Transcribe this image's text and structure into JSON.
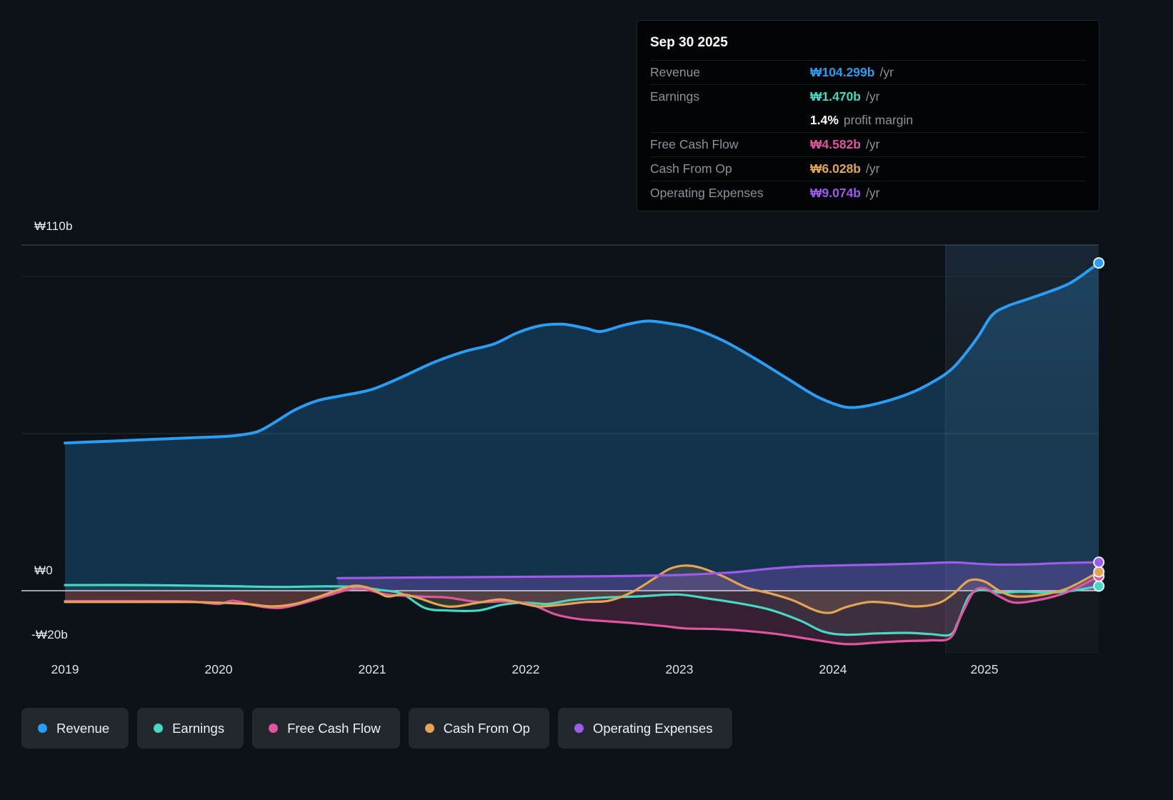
{
  "tooltip": {
    "title": "Sep 30 2025",
    "rows": [
      {
        "label": "Revenue",
        "value": "₩104.299b",
        "suffix": "/yr",
        "color": "#2b9df4"
      },
      {
        "label": "Earnings",
        "value": "₩1.470b",
        "suffix": "/yr",
        "color": "#47d7c3"
      },
      {
        "label": "",
        "value": "1.4%",
        "suffix": "profit margin",
        "color": "#ffffff"
      },
      {
        "label": "Free Cash Flow",
        "value": "₩4.582b",
        "suffix": "/yr",
        "color": "#e0559f"
      },
      {
        "label": "Cash From Op",
        "value": "₩6.028b",
        "suffix": "/yr",
        "color": "#e3a455"
      },
      {
        "label": "Operating Expenses",
        "value": "₩9.074b",
        "suffix": "/yr",
        "color": "#9d5ce8"
      }
    ]
  },
  "axis": {
    "y_labels": [
      {
        "text": "₩110b",
        "value": 110
      },
      {
        "text": "₩0",
        "value": 0
      },
      {
        "text": "-₩20b",
        "value": -20
      }
    ],
    "x_labels": [
      "2019",
      "2020",
      "2021",
      "2022",
      "2023",
      "2024",
      "2025"
    ]
  },
  "legend": [
    {
      "label": "Revenue",
      "color": "#2b9df4"
    },
    {
      "label": "Earnings",
      "color": "#47d7c3"
    },
    {
      "label": "Free Cash Flow",
      "color": "#e0559f"
    },
    {
      "label": "Cash From Op",
      "color": "#e3a455"
    },
    {
      "label": "Operating Expenses",
      "color": "#9d5ce8"
    }
  ],
  "chart_data": {
    "type": "area",
    "title": "Company financial history and analyst view to Sep 30 2025",
    "y_unit": "KRW billions",
    "ylim": [
      -20,
      110
    ],
    "x_range": [
      2019,
      2025.75
    ],
    "x_ticks": [
      "2019",
      "2020",
      "2021",
      "2022",
      "2023",
      "2024",
      "2025"
    ],
    "y_ticks": [
      "₩110b",
      "₩0",
      "-₩20b"
    ],
    "grid": true,
    "legend_position": "bottom",
    "highlight_from_x": 2024.75,
    "series": [
      {
        "name": "Revenue",
        "color": "#2b9df4",
        "points": [
          [
            2019.0,
            47
          ],
          [
            2019.3,
            47.6
          ],
          [
            2019.6,
            48.2
          ],
          [
            2019.9,
            48.8
          ],
          [
            2020.1,
            49.3
          ],
          [
            2020.25,
            50.5
          ],
          [
            2020.35,
            53
          ],
          [
            2020.5,
            57.5
          ],
          [
            2020.65,
            60.5
          ],
          [
            2020.8,
            62
          ],
          [
            2021.0,
            64
          ],
          [
            2021.2,
            68
          ],
          [
            2021.4,
            72.5
          ],
          [
            2021.6,
            76
          ],
          [
            2021.8,
            78.5
          ],
          [
            2021.95,
            82
          ],
          [
            2022.1,
            84.3
          ],
          [
            2022.25,
            84.8
          ],
          [
            2022.4,
            83.5
          ],
          [
            2022.5,
            82.5
          ],
          [
            2022.65,
            84.5
          ],
          [
            2022.8,
            85.8
          ],
          [
            2022.95,
            85
          ],
          [
            2023.1,
            83.5
          ],
          [
            2023.3,
            79.5
          ],
          [
            2023.5,
            74
          ],
          [
            2023.7,
            68
          ],
          [
            2023.9,
            62
          ],
          [
            2024.05,
            59
          ],
          [
            2024.15,
            58.3
          ],
          [
            2024.3,
            59.5
          ],
          [
            2024.5,
            62.5
          ],
          [
            2024.65,
            66
          ],
          [
            2024.8,
            71
          ],
          [
            2024.95,
            80
          ],
          [
            2025.05,
            87.5
          ],
          [
            2025.15,
            90.5
          ],
          [
            2025.3,
            93
          ],
          [
            2025.5,
            96.5
          ],
          [
            2025.6,
            99
          ],
          [
            2025.75,
            104.299
          ]
        ]
      },
      {
        "name": "Earnings",
        "color": "#47d7c3",
        "points": [
          [
            2019.0,
            1.8
          ],
          [
            2019.5,
            1.8
          ],
          [
            2020.0,
            1.5
          ],
          [
            2020.4,
            1.2
          ],
          [
            2020.7,
            1.4
          ],
          [
            2020.9,
            1.2
          ],
          [
            2021.05,
            0.3
          ],
          [
            2021.2,
            -1
          ],
          [
            2021.35,
            -5.5
          ],
          [
            2021.5,
            -6.3
          ],
          [
            2021.7,
            -6.3
          ],
          [
            2021.85,
            -4.5
          ],
          [
            2022.0,
            -3.8
          ],
          [
            2022.15,
            -4.2
          ],
          [
            2022.3,
            -3
          ],
          [
            2022.5,
            -2.2
          ],
          [
            2022.75,
            -1.8
          ],
          [
            2023.0,
            -1.2
          ],
          [
            2023.2,
            -2.5
          ],
          [
            2023.4,
            -4
          ],
          [
            2023.6,
            -6
          ],
          [
            2023.8,
            -9.5
          ],
          [
            2023.95,
            -13
          ],
          [
            2024.1,
            -14
          ],
          [
            2024.3,
            -13.6
          ],
          [
            2024.5,
            -13.4
          ],
          [
            2024.65,
            -13.8
          ],
          [
            2024.78,
            -14
          ],
          [
            2024.83,
            -10
          ],
          [
            2024.9,
            -2
          ],
          [
            2024.98,
            0.3
          ],
          [
            2025.1,
            -0.6
          ],
          [
            2025.25,
            -0.3
          ],
          [
            2025.4,
            -0.6
          ],
          [
            2025.55,
            -0.2
          ],
          [
            2025.75,
            1.47
          ]
        ]
      },
      {
        "name": "Free Cash Flow",
        "color": "#e0559f",
        "points": [
          [
            2019.0,
            -3.3
          ],
          [
            2019.4,
            -3.3
          ],
          [
            2019.8,
            -3.4
          ],
          [
            2020.0,
            -4.2
          ],
          [
            2020.1,
            -3.2
          ],
          [
            2020.25,
            -4.8
          ],
          [
            2020.4,
            -5.5
          ],
          [
            2020.55,
            -4
          ],
          [
            2020.7,
            -1.8
          ],
          [
            2020.85,
            0.3
          ],
          [
            2020.95,
            0.6
          ],
          [
            2021.1,
            -1.2
          ],
          [
            2021.3,
            -1.8
          ],
          [
            2021.5,
            -2.2
          ],
          [
            2021.7,
            -3.6
          ],
          [
            2021.9,
            -3.4
          ],
          [
            2022.05,
            -4.5
          ],
          [
            2022.2,
            -7.5
          ],
          [
            2022.35,
            -9
          ],
          [
            2022.5,
            -9.6
          ],
          [
            2022.7,
            -10.3
          ],
          [
            2022.9,
            -11.2
          ],
          [
            2023.05,
            -12
          ],
          [
            2023.25,
            -12.2
          ],
          [
            2023.45,
            -12.8
          ],
          [
            2023.65,
            -13.8
          ],
          [
            2023.85,
            -15.3
          ],
          [
            2024.05,
            -16.8
          ],
          [
            2024.15,
            -17
          ],
          [
            2024.3,
            -16.5
          ],
          [
            2024.5,
            -16
          ],
          [
            2024.65,
            -15.8
          ],
          [
            2024.78,
            -15
          ],
          [
            2024.85,
            -8
          ],
          [
            2024.93,
            -0.5
          ],
          [
            2025.0,
            0.8
          ],
          [
            2025.1,
            -1.8
          ],
          [
            2025.2,
            -3.8
          ],
          [
            2025.35,
            -3
          ],
          [
            2025.5,
            -1.2
          ],
          [
            2025.6,
            0.8
          ],
          [
            2025.75,
            4.582
          ]
        ]
      },
      {
        "name": "Cash From Op",
        "color": "#e3a455",
        "points": [
          [
            2019.0,
            -3.6
          ],
          [
            2019.4,
            -3.6
          ],
          [
            2019.8,
            -3.6
          ],
          [
            2020.0,
            -3.8
          ],
          [
            2020.2,
            -4.3
          ],
          [
            2020.35,
            -5
          ],
          [
            2020.5,
            -4.2
          ],
          [
            2020.65,
            -2
          ],
          [
            2020.8,
            0.5
          ],
          [
            2020.9,
            1.6
          ],
          [
            2021.0,
            0.6
          ],
          [
            2021.1,
            -1.8
          ],
          [
            2021.2,
            -1.2
          ],
          [
            2021.3,
            -2.2
          ],
          [
            2021.45,
            -4.6
          ],
          [
            2021.55,
            -5
          ],
          [
            2021.7,
            -3.8
          ],
          [
            2021.85,
            -2.8
          ],
          [
            2022.0,
            -4.2
          ],
          [
            2022.1,
            -5
          ],
          [
            2022.25,
            -4.4
          ],
          [
            2022.4,
            -3.6
          ],
          [
            2022.55,
            -3.2
          ],
          [
            2022.7,
            -0.5
          ],
          [
            2022.85,
            4
          ],
          [
            2022.95,
            7
          ],
          [
            2023.05,
            8
          ],
          [
            2023.15,
            7.3
          ],
          [
            2023.3,
            4.5
          ],
          [
            2023.45,
            1
          ],
          [
            2023.6,
            -0.8
          ],
          [
            2023.75,
            -3
          ],
          [
            2023.9,
            -6.3
          ],
          [
            2024.0,
            -7
          ],
          [
            2024.1,
            -5.2
          ],
          [
            2024.25,
            -3.6
          ],
          [
            2024.4,
            -4
          ],
          [
            2024.55,
            -5
          ],
          [
            2024.7,
            -4
          ],
          [
            2024.8,
            -1
          ],
          [
            2024.9,
            3.2
          ],
          [
            2025.0,
            3
          ],
          [
            2025.1,
            0
          ],
          [
            2025.2,
            -1.8
          ],
          [
            2025.35,
            -1.5
          ],
          [
            2025.5,
            0
          ],
          [
            2025.6,
            2
          ],
          [
            2025.75,
            6.028
          ]
        ]
      },
      {
        "name": "Operating Expenses",
        "color": "#9d5ce8",
        "points": [
          [
            2020.78,
            4
          ],
          [
            2021.0,
            4.1
          ],
          [
            2021.3,
            4.2
          ],
          [
            2021.6,
            4.3
          ],
          [
            2021.9,
            4.4
          ],
          [
            2022.2,
            4.5
          ],
          [
            2022.5,
            4.6
          ],
          [
            2022.8,
            4.8
          ],
          [
            2023.0,
            5
          ],
          [
            2023.2,
            5.4
          ],
          [
            2023.4,
            6
          ],
          [
            2023.6,
            7
          ],
          [
            2023.8,
            7.7
          ],
          [
            2024.0,
            8
          ],
          [
            2024.2,
            8.2
          ],
          [
            2024.4,
            8.4
          ],
          [
            2024.6,
            8.7
          ],
          [
            2024.8,
            9
          ],
          [
            2024.95,
            8.6
          ],
          [
            2025.1,
            8.3
          ],
          [
            2025.3,
            8.4
          ],
          [
            2025.5,
            8.8
          ],
          [
            2025.75,
            9.074
          ]
        ]
      }
    ]
  }
}
